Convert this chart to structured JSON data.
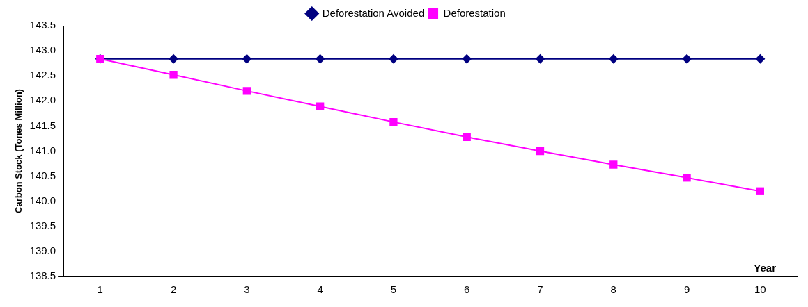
{
  "chart_data": {
    "type": "line",
    "xlabel": "Year",
    "ylabel": "Carbon Stock (Tones Million)",
    "categories": [
      "1",
      "2",
      "3",
      "4",
      "5",
      "6",
      "7",
      "8",
      "9",
      "10"
    ],
    "series": [
      {
        "name": "Deforestation Avoided",
        "color": "#000080",
        "marker": "diamond",
        "values": [
          142.84,
          142.84,
          142.84,
          142.84,
          142.84,
          142.84,
          142.84,
          142.84,
          142.84,
          142.84
        ]
      },
      {
        "name": "Deforestation",
        "color": "#ff00ff",
        "marker": "square",
        "values": [
          142.84,
          142.52,
          142.2,
          141.89,
          141.58,
          141.28,
          141.0,
          140.73,
          140.47,
          140.2
        ]
      }
    ],
    "ylim": [
      138.5,
      143.5
    ],
    "yticks": [
      138.5,
      {
        "value": 139,
        "label": "139.0"
      },
      139.5,
      {
        "value": 140,
        "label": "140.0"
      },
      140.5,
      {
        "value": 141,
        "label": "141.0"
      },
      141.5,
      {
        "value": 142,
        "label": "142.0"
      },
      142.5,
      {
        "value": 143,
        "label": "143.0"
      },
      143.5
    ],
    "grid": "y",
    "legend": "top",
    "line_style": "solid"
  }
}
